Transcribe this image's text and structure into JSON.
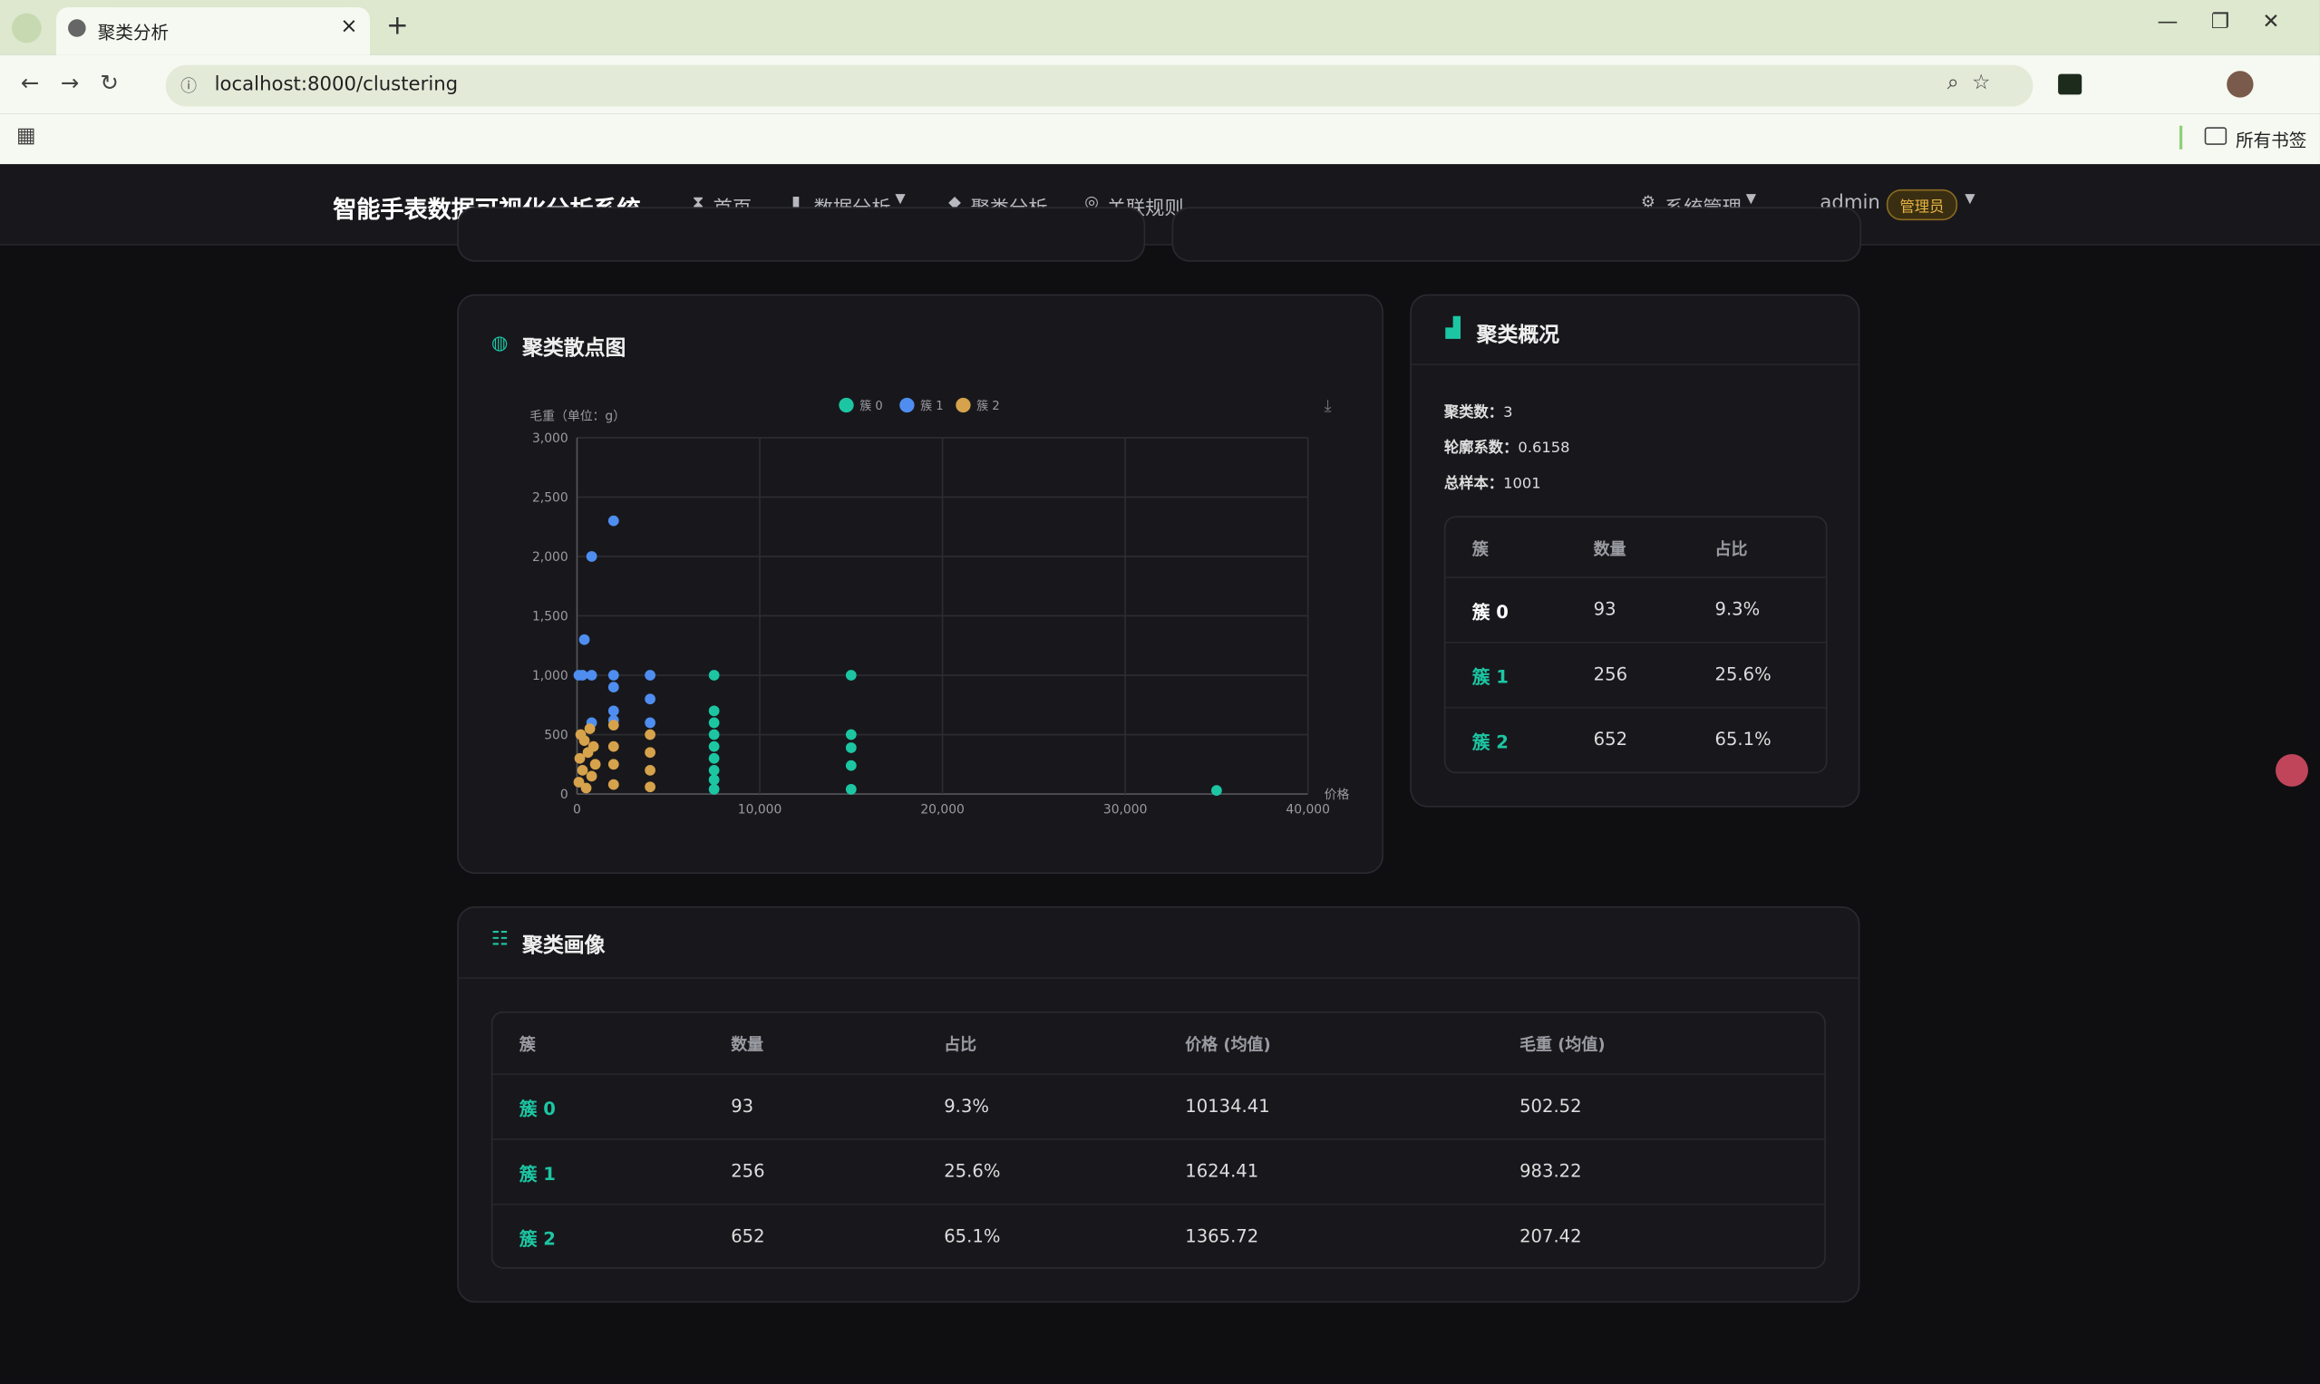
{
  "browser": {
    "tab_title": "聚类分析",
    "url": "localhost:8000/clustering",
    "bookmarks": "所有书签"
  },
  "nav": {
    "brand": "智能手表数据可视化分析系统",
    "items": [
      "首页",
      "数据分析",
      "聚类分析",
      "关联规则"
    ],
    "system": "系统管理",
    "user": "admin",
    "role": "管理员"
  },
  "scatter_card": {
    "title": "聚类散点图",
    "chart_data": {
      "type": "scatter",
      "y_label": "毛重（单位：g）",
      "x_label": "价格",
      "xlim": [
        0,
        40000
      ],
      "xticks": [
        0,
        {
          "value": 10000,
          "label": "10,000"
        },
        {
          "value": 20000,
          "label": "20,000"
        },
        {
          "value": 30000,
          "label": "30,000"
        },
        {
          "value": 40000,
          "label": "40,000"
        }
      ],
      "ylim": [
        0,
        3000
      ],
      "yticks": [
        0,
        500,
        {
          "value": 1000,
          "label": "1,000"
        },
        {
          "value": 1500,
          "label": "1,500"
        },
        {
          "value": 2000,
          "label": "2,000"
        },
        {
          "value": 2500,
          "label": "2,500"
        },
        {
          "value": 3000,
          "label": "3,000"
        }
      ],
      "grid": true,
      "series": [
        {
          "name": "簇 0",
          "color": "#1cc6a3",
          "x": [
            7500,
            7500,
            7500,
            7500,
            7500,
            7500,
            7500,
            7500,
            7500,
            15000,
            15000,
            15000,
            15000,
            15000,
            35000
          ],
          "values": [
            1000,
            700,
            600,
            500,
            400,
            300,
            200,
            120,
            40,
            1000,
            500,
            390,
            240,
            40,
            30
          ]
        },
        {
          "name": "簇 1",
          "color": "#4f8ef0",
          "x": [
            100,
            300,
            400,
            800,
            800,
            800,
            2000,
            2000,
            2000,
            2000,
            2000,
            4000,
            4000,
            4000
          ],
          "values": [
            1000,
            1000,
            1300,
            2000,
            1000,
            600,
            2300,
            1000,
            900,
            700,
            620,
            1000,
            800,
            600
          ]
        },
        {
          "name": "簇 2",
          "color": "#d6a24b",
          "x": [
            100,
            150,
            200,
            300,
            400,
            500,
            600,
            700,
            800,
            900,
            1000,
            2000,
            2000,
            2000,
            2000,
            4000,
            4000,
            4000,
            4000
          ],
          "values": [
            100,
            300,
            500,
            200,
            450,
            50,
            350,
            550,
            150,
            400,
            250,
            80,
            250,
            400,
            580,
            60,
            200,
            350,
            500
          ]
        }
      ]
    }
  },
  "summary": {
    "title": "聚类概况",
    "stats": [
      {
        "label": "聚类数：",
        "value": "3"
      },
      {
        "label": "轮廓系数：",
        "value": "0.6158"
      },
      {
        "label": "总样本：",
        "value": "1001"
      }
    ],
    "table": {
      "header": [
        "簇",
        "数量",
        "占比"
      ],
      "rows": [
        [
          "簇 0",
          "93",
          "9.3%"
        ],
        [
          "簇 1",
          "256",
          "25.6%"
        ],
        [
          "簇 2",
          "652",
          "65.1%"
        ]
      ]
    }
  },
  "profile": {
    "title": "聚类画像",
    "table": {
      "header": [
        "簇",
        "数量",
        "占比",
        "价格 (均值)",
        "毛重 (均值)"
      ],
      "rows": [
        [
          "簇 0",
          "93",
          "9.3%",
          "10134.41",
          "502.52"
        ],
        [
          "簇 1",
          "256",
          "25.6%",
          "1624.41",
          "983.22"
        ],
        [
          "簇 2",
          "652",
          "65.1%",
          "1365.72",
          "207.42"
        ]
      ]
    }
  }
}
